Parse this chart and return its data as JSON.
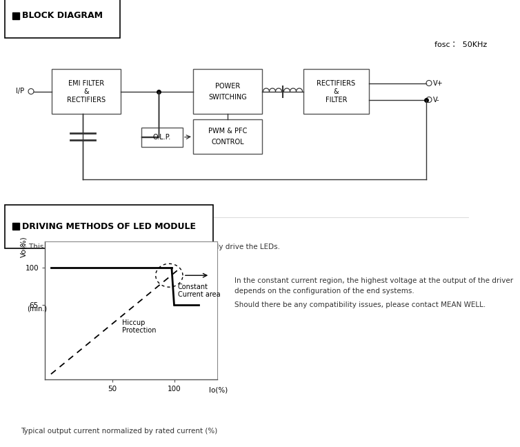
{
  "bg_color": "#ffffff",
  "title1": "BLOCK DIAGRAM",
  "title2": "DRIVING METHODS OF LED MODULE",
  "fosc_label": "fosc：  50KHz",
  "series_note": "※ This series works in constant current mode to directly drive the LEDs.",
  "right_text_line1": "In the constant current region, the highest voltage at the output of the driver",
  "right_text_line2": "depends on the configuration of the end systems.",
  "right_text_line3": "Should there be any compatibility issues, please contact MEAN WELL.",
  "annotation_text1": "Constant",
  "annotation_text2": "Current area",
  "hiccup_text1": "Hiccup",
  "hiccup_text2": "Protection",
  "footer_text": "Typical output current normalized by rated current (%)"
}
